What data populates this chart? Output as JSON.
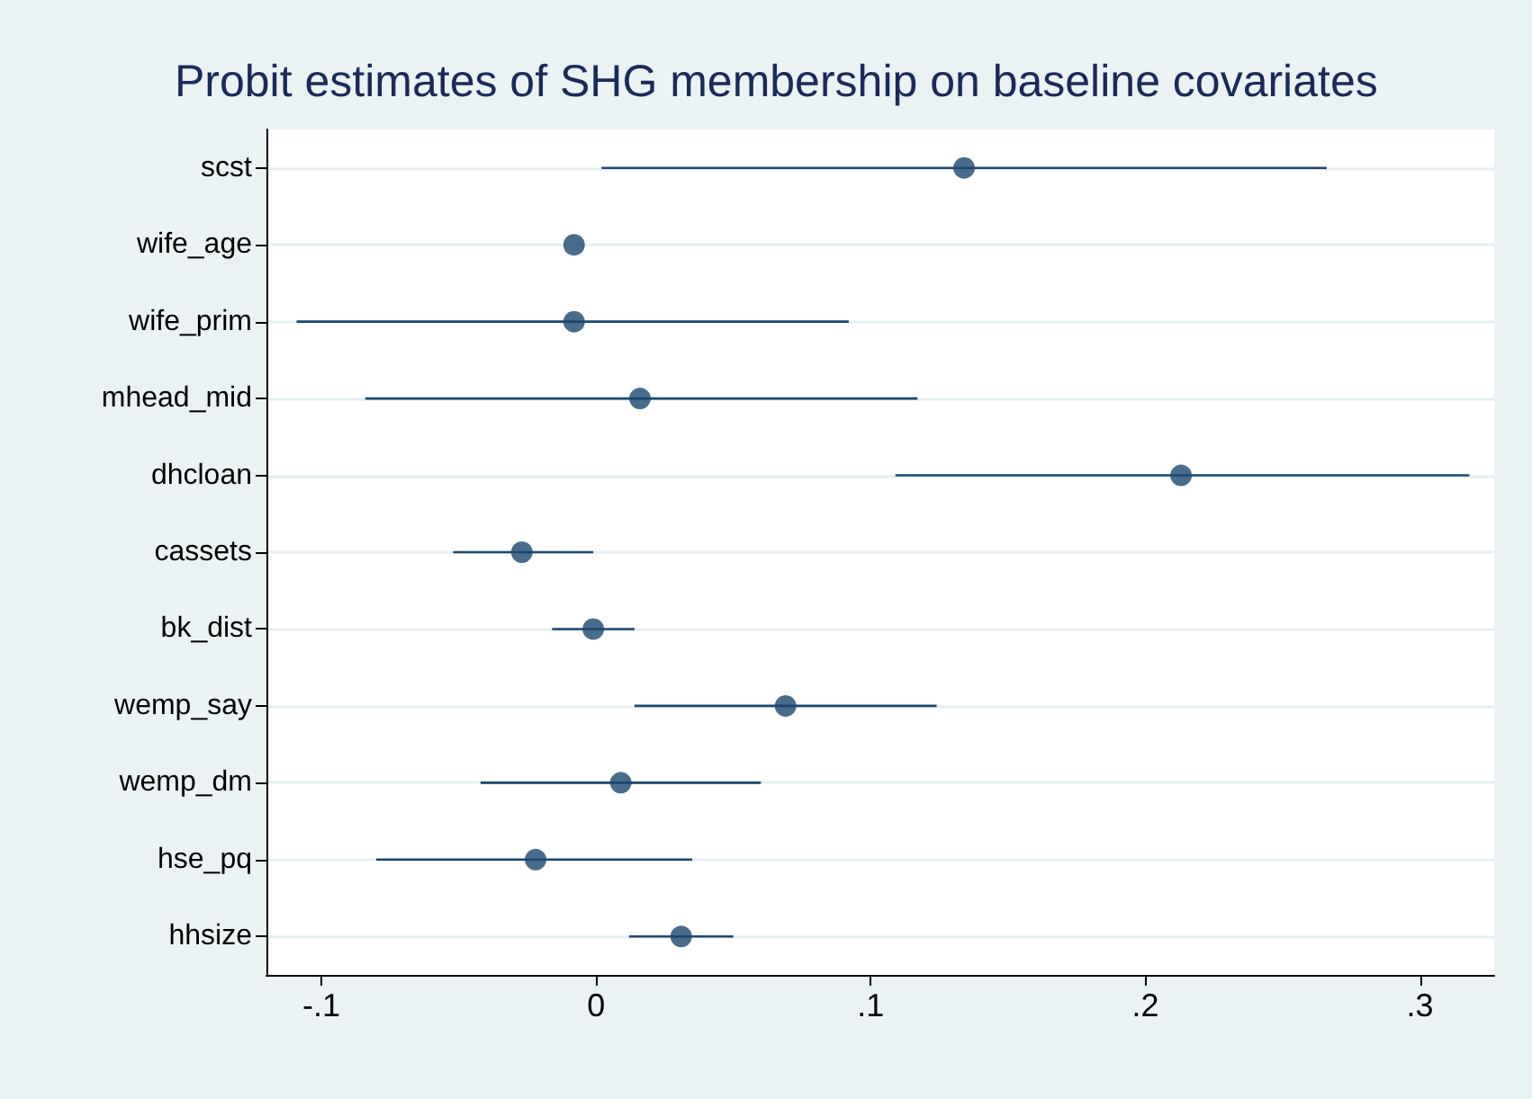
{
  "chart_data": {
    "type": "scatter",
    "orientation": "horizontal",
    "title": "Probit estimates of SHG membership on baseline covariates",
    "categories": [
      "scst",
      "wife_age",
      "wife_prim",
      "mhead_mid",
      "dhcloan",
      "cassets",
      "bk_dist",
      "wemp_say",
      "wemp_dm",
      "hse_pq",
      "hhsize"
    ],
    "values": [
      0.134,
      -0.008,
      -0.008,
      0.016,
      0.213,
      -0.027,
      -0.001,
      0.069,
      0.009,
      -0.022,
      0.031
    ],
    "errors": [
      [
        0.002,
        0.266
      ],
      null,
      [
        -0.109,
        0.092
      ],
      [
        -0.084,
        0.117
      ],
      [
        0.109,
        0.318
      ],
      [
        -0.052,
        -0.001
      ],
      [
        -0.016,
        0.014
      ],
      [
        0.014,
        0.124
      ],
      [
        -0.042,
        0.06
      ],
      [
        -0.08,
        0.035
      ],
      [
        0.012,
        0.05
      ]
    ],
    "color": "#1a476f",
    "marker": "circle",
    "grid": "y",
    "xlim": [
      -0.12,
      0.327
    ],
    "xticks": [
      {
        "value": -0.1,
        "label": "-.1"
      },
      0,
      {
        "value": 0.1,
        "label": ".1"
      },
      {
        "value": 0.2,
        "label": ".2"
      },
      {
        "value": 0.3,
        "label": ".3"
      }
    ]
  }
}
